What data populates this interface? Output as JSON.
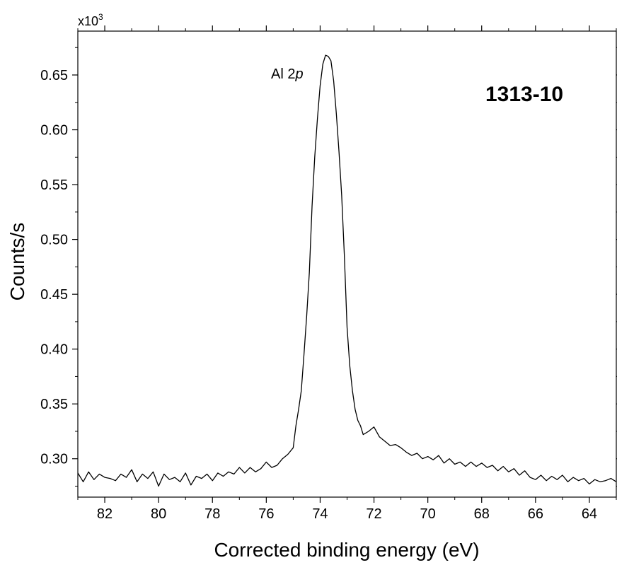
{
  "chart_data": {
    "type": "line",
    "xlabel": "Corrected binding energy (eV)",
    "ylabel": "Counts/s",
    "y_multiplier": "x10",
    "y_multiplier_exp": "3",
    "xlim": [
      83,
      63
    ],
    "x_reversed": true,
    "ylim": [
      0.265,
      0.69
    ],
    "x_ticks": [
      82,
      80,
      78,
      76,
      74,
      72,
      70,
      68,
      66,
      64
    ],
    "x_tick_labels": [
      "82",
      "80",
      "78",
      "76",
      "74",
      "72",
      "70",
      "68",
      "66",
      "64"
    ],
    "y_ticks": [
      0.3,
      0.35,
      0.4,
      0.45,
      0.5,
      0.55,
      0.6,
      0.65
    ],
    "y_tick_labels": [
      "0.30",
      "0.35",
      "0.40",
      "0.45",
      "0.50",
      "0.55",
      "0.60",
      "0.65"
    ],
    "grid": false,
    "annotations": {
      "sample": "1313-10",
      "peak_prefix": "Al 2",
      "peak_suffix": "p"
    },
    "series": [
      {
        "color": "#000000",
        "x": [
          83.0,
          82.8,
          82.6,
          82.4,
          82.2,
          82.0,
          81.8,
          81.6,
          81.4,
          81.2,
          81.0,
          80.8,
          80.6,
          80.4,
          80.2,
          80.0,
          79.8,
          79.6,
          79.4,
          79.2,
          79.0,
          78.8,
          78.6,
          78.4,
          78.2,
          78.0,
          77.8,
          77.6,
          77.4,
          77.2,
          77.0,
          76.8,
          76.6,
          76.4,
          76.2,
          76.0,
          75.8,
          75.6,
          75.4,
          75.2,
          75.0,
          74.9,
          74.8,
          74.7,
          74.6,
          74.5,
          74.4,
          74.3,
          74.2,
          74.1,
          74.0,
          73.9,
          73.8,
          73.7,
          73.6,
          73.5,
          73.4,
          73.3,
          73.2,
          73.1,
          73.0,
          72.9,
          72.8,
          72.7,
          72.6,
          72.5,
          72.4,
          72.2,
          72.0,
          71.8,
          71.6,
          71.4,
          71.2,
          71.0,
          70.8,
          70.6,
          70.4,
          70.2,
          70.0,
          69.8,
          69.6,
          69.4,
          69.2,
          69.0,
          68.8,
          68.6,
          68.4,
          68.2,
          68.0,
          67.8,
          67.6,
          67.4,
          67.2,
          67.0,
          66.8,
          66.6,
          66.4,
          66.2,
          66.0,
          65.8,
          65.6,
          65.4,
          65.2,
          65.0,
          64.8,
          64.6,
          64.4,
          64.2,
          64.0,
          63.8,
          63.6,
          63.4,
          63.2,
          63.0
        ],
        "y": [
          0.287,
          0.279,
          0.288,
          0.281,
          0.286,
          0.283,
          0.282,
          0.28,
          0.286,
          0.283,
          0.29,
          0.279,
          0.286,
          0.282,
          0.288,
          0.275,
          0.286,
          0.281,
          0.283,
          0.279,
          0.287,
          0.276,
          0.284,
          0.282,
          0.286,
          0.28,
          0.287,
          0.284,
          0.288,
          0.286,
          0.292,
          0.287,
          0.292,
          0.288,
          0.291,
          0.297,
          0.292,
          0.294,
          0.3,
          0.304,
          0.31,
          0.33,
          0.345,
          0.362,
          0.395,
          0.43,
          0.47,
          0.53,
          0.575,
          0.61,
          0.64,
          0.66,
          0.668,
          0.667,
          0.663,
          0.645,
          0.615,
          0.58,
          0.54,
          0.485,
          0.42,
          0.385,
          0.362,
          0.345,
          0.335,
          0.33,
          0.322,
          0.325,
          0.329,
          0.32,
          0.316,
          0.312,
          0.313,
          0.31,
          0.306,
          0.303,
          0.305,
          0.3,
          0.302,
          0.299,
          0.303,
          0.296,
          0.3,
          0.295,
          0.297,
          0.293,
          0.297,
          0.293,
          0.296,
          0.292,
          0.294,
          0.289,
          0.293,
          0.288,
          0.291,
          0.285,
          0.289,
          0.283,
          0.281,
          0.285,
          0.28,
          0.284,
          0.281,
          0.285,
          0.279,
          0.283,
          0.28,
          0.282,
          0.277,
          0.281,
          0.279,
          0.28,
          0.282,
          0.279
        ]
      }
    ]
  }
}
